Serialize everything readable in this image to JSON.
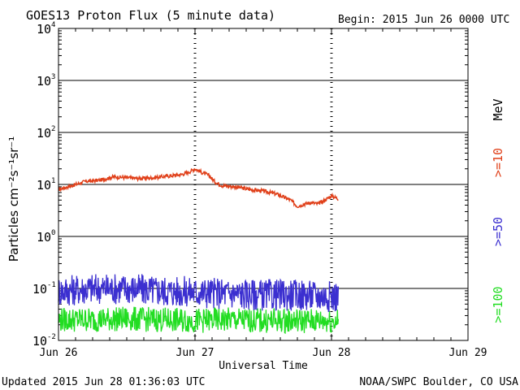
{
  "chart_data": {
    "type": "line",
    "title": "GOES13 Proton Flux (5 minute data)",
    "begin_label": "Begin: 2015 Jun 26 0000 UTC",
    "xlabel": "Universal Time",
    "ylabel": "Particles cm⁻²s⁻¹sr⁻¹",
    "footer_left": "Updated 2015 Jun 28 01:36:03 UTC",
    "footer_right": "NOAA/SWPC Boulder, CO USA",
    "y_scale": "log",
    "ylim": [
      0.01,
      10000
    ],
    "y_ticks": [
      {
        "base": "10",
        "exp": "4",
        "value": 10000
      },
      {
        "base": "10",
        "exp": "3",
        "value": 1000
      },
      {
        "base": "10",
        "exp": "2",
        "value": 100
      },
      {
        "base": "10",
        "exp": "1",
        "value": 10
      },
      {
        "base": "10",
        "exp": "0",
        "value": 1
      },
      {
        "base": "10",
        "exp": "-1",
        "value": 0.1
      },
      {
        "base": "10",
        "exp": "-2",
        "value": 0.01
      }
    ],
    "xlim_days": [
      0,
      3
    ],
    "x_ticks": [
      {
        "label": "Jun 26",
        "day": 0
      },
      {
        "label": "Jun 27",
        "day": 1
      },
      {
        "label": "Jun 28",
        "day": 2
      },
      {
        "label": "Jun 29",
        "day": 3
      }
    ],
    "threshold": 10,
    "right_legend": [
      {
        "label": ">=10",
        "color": "#e0401a"
      },
      {
        "label": "MeV",
        "color": "#000000"
      },
      {
        "label": ">=50",
        "color": "#3b2fd0"
      },
      {
        "label": ">=100",
        "color": "#22dd22"
      }
    ],
    "series": [
      {
        "name": ">=10 MeV",
        "color": "#e0401a",
        "x_days": [
          0,
          0.1,
          0.2,
          0.3,
          0.4,
          0.5,
          0.6,
          0.7,
          0.8,
          0.9,
          0.95,
          1.0,
          1.05,
          1.1,
          1.15,
          1.2,
          1.3,
          1.4,
          1.5,
          1.6,
          1.7,
          1.75,
          1.8,
          1.85,
          1.9,
          1.95,
          2.0,
          2.05
        ],
        "values": [
          8,
          9.5,
          11.5,
          12,
          14,
          13.5,
          13,
          13.5,
          14.5,
          15.5,
          17,
          20,
          17,
          15,
          11,
          9.5,
          9,
          8,
          7.5,
          6.5,
          5,
          3.8,
          4.2,
          4.5,
          4.2,
          5,
          6,
          5.3
        ]
      },
      {
        "name": ">=50 MeV",
        "color": "#3b2fd0",
        "x_days": [
          0,
          0.25,
          0.5,
          0.75,
          1.0,
          1.25,
          1.5,
          1.75,
          2.05
        ],
        "values": [
          0.09,
          0.1,
          0.1,
          0.09,
          0.085,
          0.08,
          0.075,
          0.075,
          0.07
        ]
      },
      {
        "name": ">=100 MeV",
        "color": "#22dd22",
        "x_days": [
          0,
          0.25,
          0.5,
          0.75,
          1.0,
          1.25,
          1.5,
          1.75,
          2.05
        ],
        "values": [
          0.025,
          0.025,
          0.026,
          0.025,
          0.024,
          0.025,
          0.024,
          0.024,
          0.024
        ]
      }
    ]
  }
}
